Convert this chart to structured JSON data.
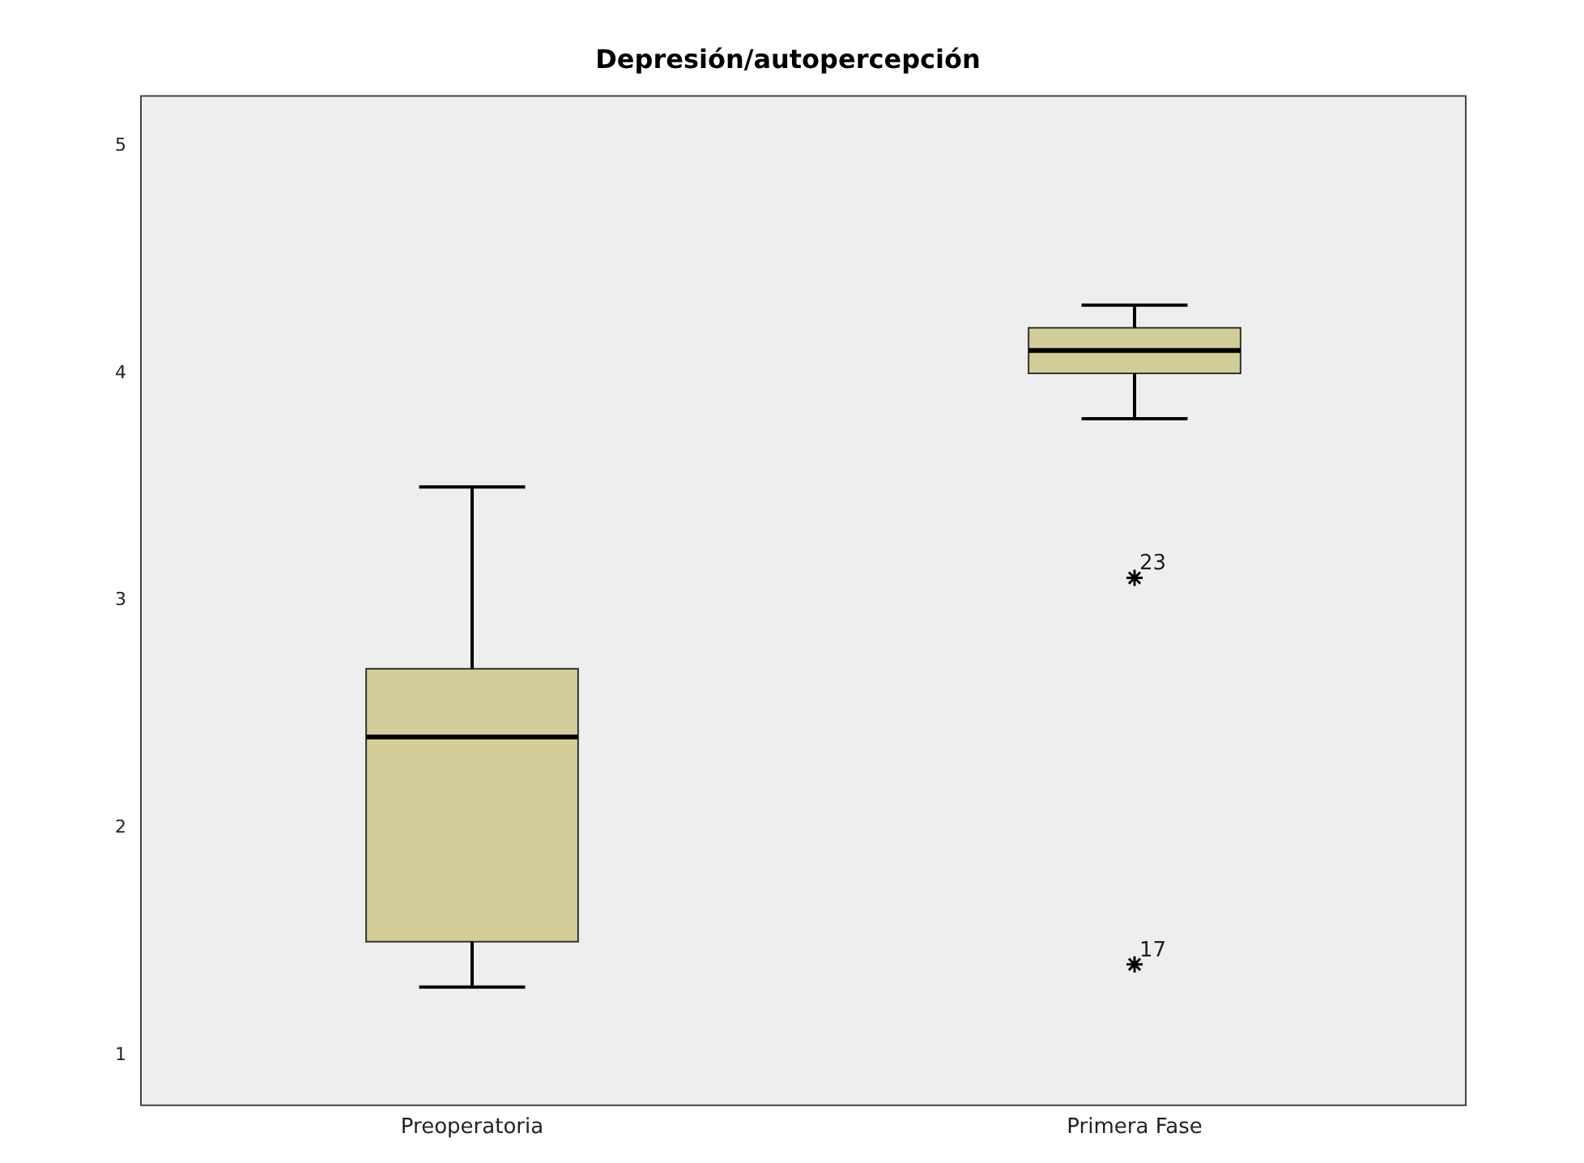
{
  "chart_data": {
    "type": "box",
    "title": "Depresión/autopercepción",
    "categories": [
      "Preoperatoria",
      "Primera Fase"
    ],
    "color": "#d3cd98",
    "boxes": [
      {
        "low": 1.3,
        "q1": 1.5,
        "median": 2.4,
        "q3": 2.7,
        "high": 3.5
      },
      {
        "low": 3.8,
        "q1": 4.0,
        "median": 4.1,
        "q3": 4.2,
        "high": 4.3,
        "outliers": [
          3.1,
          1.4
        ]
      }
    ],
    "marker": "star",
    "ylim": [
      0.78,
      5.22
    ],
    "yticks": [
      1,
      2,
      3,
      4,
      5
    ],
    "grid": false,
    "legend": false,
    "annotations": [
      "23",
      "17"
    ]
  }
}
